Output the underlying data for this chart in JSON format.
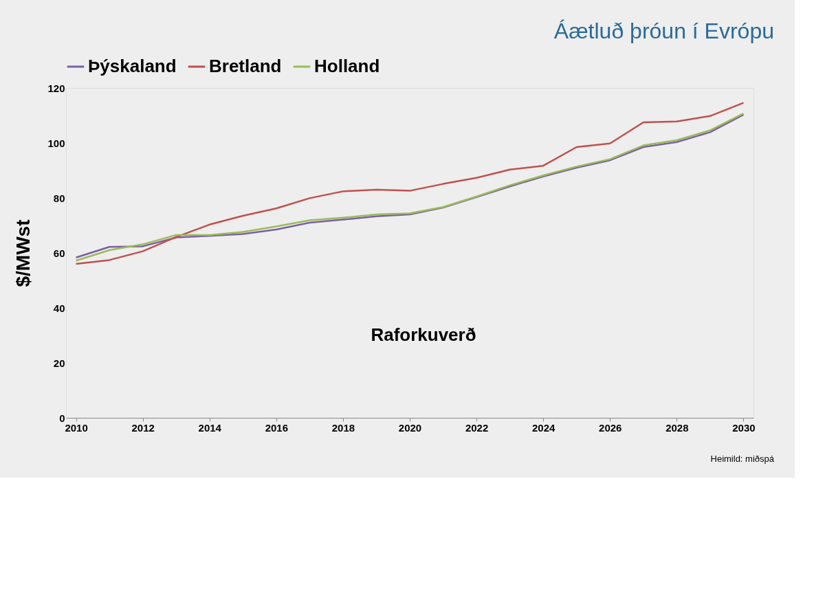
{
  "chart_data": {
    "type": "line",
    "title": "Áætluð þróun í Evrópu",
    "ylabel": "$/MWst",
    "x": [
      2010,
      2011,
      2012,
      2013,
      2014,
      2015,
      2016,
      2017,
      2018,
      2019,
      2020,
      2021,
      2022,
      2023,
      2024,
      2025,
      2026,
      2027,
      2028,
      2029,
      2030
    ],
    "series": [
      {
        "name": "Þýskaland",
        "color": "#7b5fa3",
        "values": [
          58.3,
          62.2,
          62.4,
          65.6,
          66.2,
          66.9,
          68.5,
          71.0,
          72.1,
          73.3,
          74.0,
          76.5,
          80.3,
          84.2,
          87.8,
          91.0,
          93.7,
          98.5,
          100.3,
          103.9,
          110.3
        ]
      },
      {
        "name": "Bretland",
        "color": "#c0504d",
        "values": [
          56.0,
          57.4,
          60.6,
          65.8,
          70.3,
          73.5,
          76.2,
          79.9,
          82.4,
          83.0,
          82.6,
          85.1,
          87.3,
          90.3,
          91.7,
          98.5,
          99.8,
          107.5,
          107.8,
          109.8,
          114.6
        ]
      },
      {
        "name": "Holland",
        "color": "#9bbb59",
        "values": [
          57.2,
          61.0,
          63.1,
          66.5,
          66.5,
          67.6,
          69.6,
          71.9,
          72.8,
          74.0,
          74.4,
          76.7,
          80.5,
          84.6,
          88.2,
          91.4,
          94.1,
          99.1,
          101.0,
          104.6,
          110.7
        ]
      }
    ],
    "xlim": [
      2009.7,
      2030.3
    ],
    "xticks": [
      2010,
      2012,
      2014,
      2016,
      2018,
      2020,
      2022,
      2024,
      2026,
      2028,
      2030
    ],
    "ylim": [
      0,
      120
    ],
    "yticks": [
      0,
      20,
      40,
      60,
      80,
      100,
      120
    ],
    "grid": false,
    "legend": "top",
    "marker": "none",
    "line_style": "solid",
    "annotations": [
      "Raforkuverð",
      "Heimild: miðspá"
    ]
  }
}
